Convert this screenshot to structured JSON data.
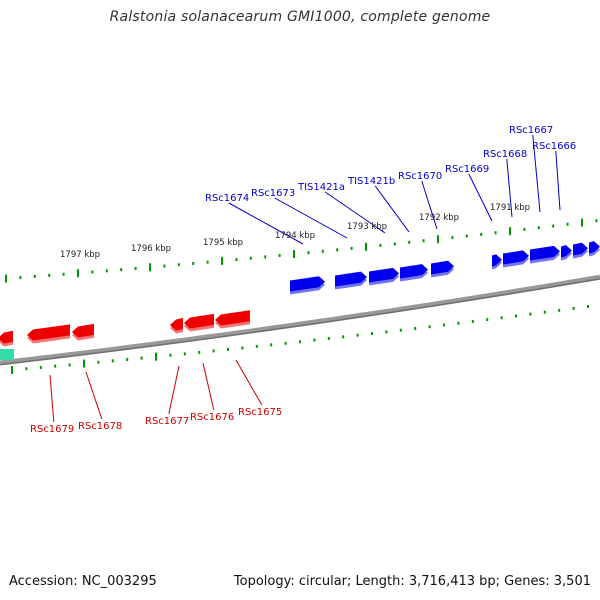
{
  "title": "Ralstonia solanacearum GMI1000, complete genome",
  "footer": {
    "accession": "Accession: NC_003295",
    "topology": "Topology: circular; Length: 3,716,413 bp; Genes: 3,501"
  },
  "colors": {
    "forward_gene": "#0000ee",
    "reverse_gene": "#ee0000",
    "other_feature": "#33ddaa",
    "tick": "#009900",
    "backbone": "#888888",
    "forward_label": "#0000cc",
    "reverse_label": "#cc0000"
  },
  "scale_labels": [
    "1797 kbp",
    "1796 kbp",
    "1795 kbp",
    "1794 kbp",
    "1793 kbp",
    "1792 kbp",
    "1791 kbp"
  ],
  "forward_gene_labels": [
    "RSc1674",
    "RSc1673",
    "TIS1421a",
    "TIS1421b",
    "RSc1670",
    "RSc1669",
    "RSc1668",
    "RSc1667",
    "RSc1666"
  ],
  "reverse_gene_labels": [
    "RSc1679",
    "RSc1678",
    "RSc1677",
    "RSc1676",
    "RSc1675"
  ]
}
